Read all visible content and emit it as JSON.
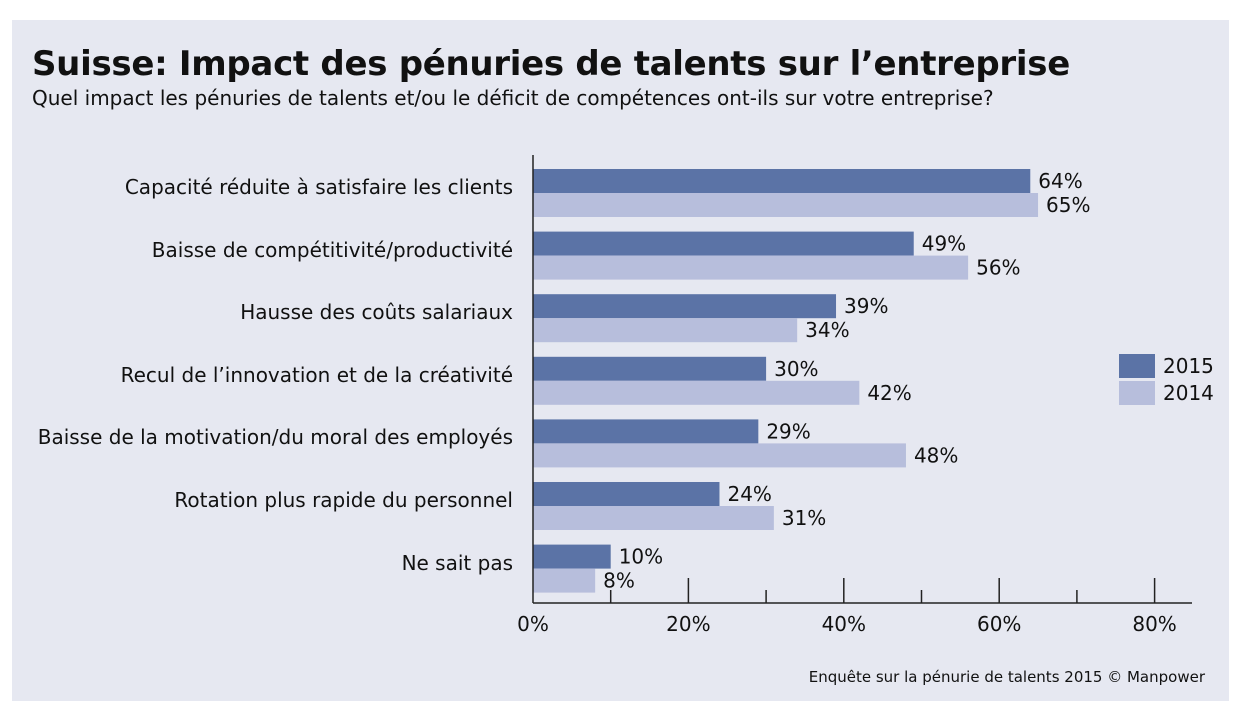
{
  "chart_data": {
    "type": "bar",
    "orientation": "horizontal",
    "title": "Suisse: Impact des pénuries de talents sur l’entreprise",
    "subtitle": "Quel impact les pénuries de talents et/ou le déficit de compétences ont-ils sur votre entreprise?",
    "categories": [
      "Capacité réduite à satisfaire les clients",
      "Baisse de compétitivité/productivité",
      "Hausse des coûts salariaux",
      "Recul de l’innovation et de la créativité",
      "Baisse de la motivation/du moral des employés",
      "Rotation plus rapide du personnel",
      "Ne sait pas"
    ],
    "series": [
      {
        "name": "2015",
        "color": "#5b73a6",
        "values": [
          64,
          49,
          39,
          30,
          29,
          24,
          10
        ],
        "value_labels": [
          "64%",
          "49%",
          "39%",
          "30%",
          "29%",
          "24%",
          "10%"
        ]
      },
      {
        "name": "2014",
        "color": "#b7bedc",
        "values": [
          65,
          56,
          34,
          42,
          48,
          31,
          8
        ],
        "value_labels": [
          "65%",
          "56%",
          "34%",
          "42%",
          "48%",
          "31%",
          "8%"
        ]
      }
    ],
    "xlim": [
      0,
      85
    ],
    "xticks": [
      0,
      20,
      40,
      60,
      80
    ],
    "xtick_labels": [
      "0%",
      "20%",
      "40%",
      "60%",
      "80%"
    ],
    "xlabel": "",
    "ylabel": "",
    "grid": false,
    "legend_position": "right"
  },
  "source": "Enquête sur la pénurie de talents 2015 © Manpower"
}
